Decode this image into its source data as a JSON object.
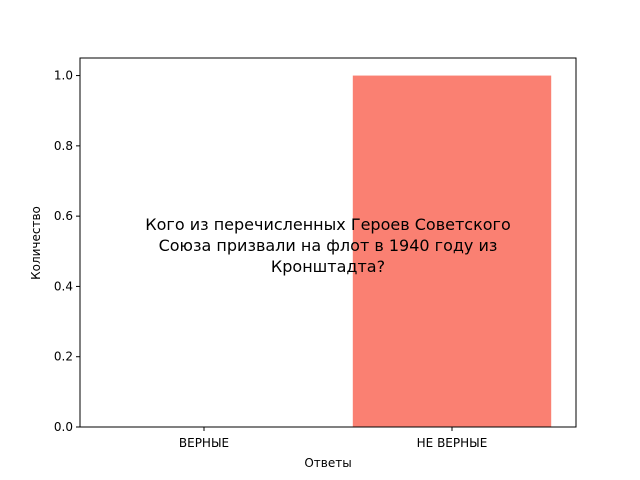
{
  "chart_data": {
    "type": "bar",
    "categories": [
      "ВЕРНЫЕ",
      "НЕ ВЕРНЫЕ"
    ],
    "values": [
      0,
      1
    ],
    "bar_color": "#fa8072",
    "title": "",
    "xlabel": "Ответы",
    "ylabel": "Количество",
    "ylim": [
      0,
      1.05
    ],
    "yticks": [
      "0.0",
      "0.2",
      "0.4",
      "0.6",
      "0.8",
      "1.0"
    ],
    "grid": false,
    "annotation_lines": [
      "Кого из перечисленных Героев Советского",
      "Союза призвали на флот в 1940 году из",
      "Кронштадта?"
    ]
  }
}
